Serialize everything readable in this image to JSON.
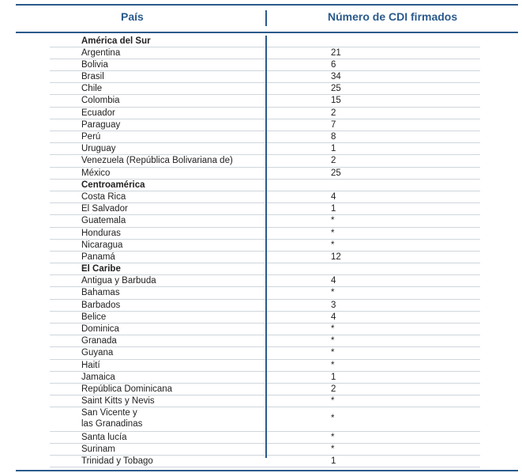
{
  "header": {
    "country": "País",
    "count": "Número de CDI firmados"
  },
  "rows": [
    {
      "c": "América del Sur",
      "v": "",
      "region": true
    },
    {
      "c": "Argentina",
      "v": "21"
    },
    {
      "c": "Bolivia",
      "v": "6"
    },
    {
      "c": "Brasil",
      "v": "34"
    },
    {
      "c": "Chile",
      "v": "25"
    },
    {
      "c": "Colombia",
      "v": "15"
    },
    {
      "c": "Ecuador",
      "v": "2"
    },
    {
      "c": "Paraguay",
      "v": "7"
    },
    {
      "c": "Perú",
      "v": "8"
    },
    {
      "c": "Uruguay",
      "v": "1"
    },
    {
      "c": "Venezuela (República Bolivariana de)",
      "v": "2"
    },
    {
      "c": "México",
      "v": "25"
    },
    {
      "c": "Centroamérica",
      "v": "",
      "region": true
    },
    {
      "c": "Costa Rica",
      "v": "4"
    },
    {
      "c": "El Salvador",
      "v": "1"
    },
    {
      "c": "Guatemala",
      "v": "*"
    },
    {
      "c": "Honduras",
      "v": "*"
    },
    {
      "c": "Nicaragua",
      "v": "*"
    },
    {
      "c": "Panamá",
      "v": "12"
    },
    {
      "c": "El Caribe",
      "v": "",
      "region": true
    },
    {
      "c": "Antigua y Barbuda",
      "v": "4"
    },
    {
      "c": "Bahamas",
      "v": "*"
    },
    {
      "c": "Barbados",
      "v": "3"
    },
    {
      "c": "Belice",
      "v": "4"
    },
    {
      "c": "Dominica",
      "v": "*"
    },
    {
      "c": "Granada",
      "v": "*"
    },
    {
      "c": "Guyana",
      "v": "*"
    },
    {
      "c": "Haití",
      "v": "*"
    },
    {
      "c": "Jamaica",
      "v": "1"
    },
    {
      "c": "República Dominicana",
      "v": "2"
    },
    {
      "c": "Saint Kitts y Nevis",
      "v": "*"
    },
    {
      "c": "San Vicente y\nlas Granadinas",
      "v": "*",
      "double": true
    },
    {
      "c": "Santa lucía",
      "v": "*"
    },
    {
      "c": "Surinam",
      "v": "*"
    },
    {
      "c": "Trinidad y Tobago",
      "v": "1"
    }
  ]
}
